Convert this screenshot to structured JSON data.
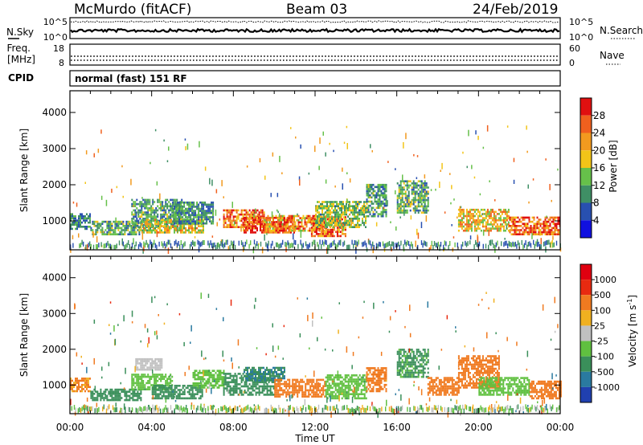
{
  "header": {
    "station": "McMurdo (fitACF)",
    "beam": "Beam 03",
    "date": "24/Feb/2019"
  },
  "noise_panel": {
    "left_label": "N.Sky",
    "left_ticks": [
      "10^5",
      "10^0"
    ],
    "right_label": "N.Search",
    "right_ticks": [
      "10^5",
      "10^0"
    ]
  },
  "freq_panel": {
    "left_label_line1": "Freq.",
    "left_label_line2": "[MHz]",
    "left_ticks": [
      "18",
      "8"
    ],
    "right_label": "Nave",
    "right_ticks": [
      "60",
      "0"
    ]
  },
  "cpid_panel": {
    "label": "CPID",
    "mode_text": "normal (fast) 151 RF"
  },
  "chart_data": [
    {
      "type": "heatmap",
      "name": "power-panel",
      "ylabel": "Slant Range [km]",
      "xlabel": "",
      "xlim_hours": [
        0,
        24
      ],
      "ylim": [
        200,
        4600
      ],
      "y_ticks": [
        "1000",
        "2000",
        "3000",
        "4000"
      ],
      "y_tick_values": [
        1000,
        2000,
        3000,
        4000
      ],
      "colorbar": {
        "label": "Power [dB]",
        "tick_labels": [
          "4",
          "8",
          "12",
          "16",
          "20",
          "24",
          "28"
        ],
        "tick_values": [
          4,
          8,
          12,
          16,
          20,
          24,
          28
        ],
        "range": [
          0,
          32
        ],
        "colors": [
          "#1010e0",
          "#2850b0",
          "#3f8f65",
          "#66c04a",
          "#f2c418",
          "#f29a1f",
          "#f0601e",
          "#e01010"
        ]
      },
      "echo_regions": [
        {
          "start": 0.0,
          "end": 1.0,
          "range_min": 750,
          "range_max": 1200,
          "value": 9
        },
        {
          "start": 1.0,
          "end": 3.5,
          "range_min": 600,
          "range_max": 950,
          "value": 12
        },
        {
          "start": 3.0,
          "end": 5.5,
          "range_min": 800,
          "range_max": 1600,
          "value": 11
        },
        {
          "start": 3.5,
          "end": 6.5,
          "range_min": 650,
          "range_max": 1000,
          "value": 18
        },
        {
          "start": 5.0,
          "end": 7.0,
          "range_min": 900,
          "range_max": 1500,
          "value": 10
        },
        {
          "start": 7.5,
          "end": 9.5,
          "range_min": 800,
          "range_max": 1300,
          "value": 26
        },
        {
          "start": 8.5,
          "end": 11.0,
          "range_min": 650,
          "range_max": 1100,
          "value": 29
        },
        {
          "start": 9.5,
          "end": 12.5,
          "range_min": 700,
          "range_max": 1150,
          "value": 23
        },
        {
          "start": 11.8,
          "end": 13.5,
          "range_min": 550,
          "range_max": 1100,
          "value": 25
        },
        {
          "start": 12.0,
          "end": 14.5,
          "range_min": 800,
          "range_max": 1500,
          "value": 14
        },
        {
          "start": 14.5,
          "end": 15.5,
          "range_min": 1100,
          "range_max": 2000,
          "value": 11
        },
        {
          "start": 16.0,
          "end": 17.5,
          "range_min": 1200,
          "range_max": 2100,
          "value": 12
        },
        {
          "start": 19.0,
          "end": 21.5,
          "range_min": 700,
          "range_max": 1300,
          "value": 20
        },
        {
          "start": 21.5,
          "end": 24.0,
          "range_min": 600,
          "range_max": 1100,
          "value": 26
        }
      ],
      "scatter_echoes": {
        "time_range": [
          0,
          24
        ],
        "range_min": 200,
        "range_max": 3600,
        "value_range": [
          6,
          26
        ]
      },
      "ground_scatter_band": {
        "range_min": 200,
        "range_max": 350
      }
    },
    {
      "type": "heatmap",
      "name": "velocity-panel",
      "ylabel": "Slant Range [km]",
      "xlabel": "Time UT",
      "xlim_hours": [
        0,
        24
      ],
      "ylim": [
        200,
        4600
      ],
      "x_ticks": [
        "00:00",
        "04:00",
        "08:00",
        "12:00",
        "16:00",
        "20:00",
        "00:00"
      ],
      "x_tick_values": [
        0,
        4,
        8,
        12,
        16,
        20,
        24
      ],
      "y_ticks": [
        "1000",
        "2000",
        "3000",
        "4000"
      ],
      "y_tick_values": [
        1000,
        2000,
        3000,
        4000
      ],
      "colorbar": {
        "label": "Velocity [m s",
        "label_sup": "-1",
        "label_end": "]",
        "tick_labels": [
          "1000",
          "500",
          "100",
          "25",
          "-25",
          "-100",
          "-500",
          "-1000"
        ],
        "colors": [
          "#2040b0",
          "#2a7aa0",
          "#3a8f5a",
          "#60c040",
          "#c0c0c0",
          "#f0b020",
          "#f07a20",
          "#e82a10",
          "#e00010"
        ]
      },
      "echo_regions": [
        {
          "start": 0.0,
          "end": 1.0,
          "range_min": 800,
          "range_max": 1200,
          "value": -120
        },
        {
          "start": 1.0,
          "end": 3.5,
          "range_min": 550,
          "range_max": 900,
          "value": 150
        },
        {
          "start": 3.0,
          "end": 5.0,
          "range_min": 850,
          "range_max": 1300,
          "value": 80
        },
        {
          "start": 3.2,
          "end": 4.5,
          "range_min": 1400,
          "range_max": 1700,
          "value": 0
        },
        {
          "start": 4.0,
          "end": 6.5,
          "range_min": 600,
          "range_max": 1000,
          "value": 160
        },
        {
          "start": 6.0,
          "end": 7.5,
          "range_min": 900,
          "range_max": 1400,
          "value": 60
        },
        {
          "start": 7.5,
          "end": 10.0,
          "range_min": 700,
          "range_max": 1300,
          "value": 200
        },
        {
          "start": 8.5,
          "end": 10.5,
          "range_min": 1100,
          "range_max": 1500,
          "value": 500
        },
        {
          "start": 10.0,
          "end": 12.5,
          "range_min": 650,
          "range_max": 1150,
          "value": -140
        },
        {
          "start": 12.5,
          "end": 14.5,
          "range_min": 600,
          "range_max": 1300,
          "value": 80
        },
        {
          "start": 14.5,
          "end": 15.5,
          "range_min": 800,
          "range_max": 1500,
          "value": -130
        },
        {
          "start": 16.0,
          "end": 17.5,
          "range_min": 1200,
          "range_max": 2000,
          "value": 120
        },
        {
          "start": 17.5,
          "end": 19.0,
          "range_min": 700,
          "range_max": 1200,
          "value": -160
        },
        {
          "start": 19.0,
          "end": 21.0,
          "range_min": 900,
          "range_max": 1800,
          "value": -150
        },
        {
          "start": 20.0,
          "end": 22.5,
          "range_min": 700,
          "range_max": 1200,
          "value": 40
        },
        {
          "start": 22.5,
          "end": 24.0,
          "range_min": 600,
          "range_max": 1100,
          "value": -200
        }
      ],
      "scatter_echoes": {
        "time_range": [
          0,
          24
        ],
        "range_min": 200,
        "range_max": 3600,
        "value_range": [
          -600,
          600
        ]
      },
      "ground_scatter_band": {
        "range_min": 200,
        "range_max": 330
      }
    }
  ]
}
